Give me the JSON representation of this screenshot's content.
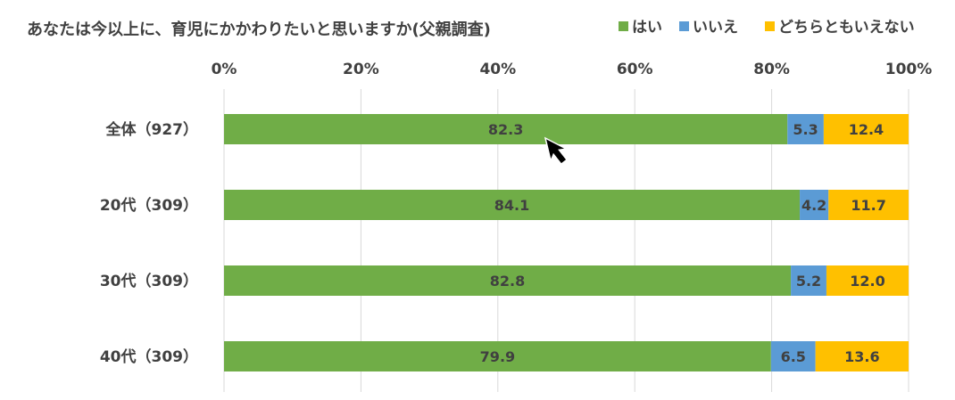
{
  "chart_data": {
    "type": "bar",
    "orientation": "horizontal",
    "stacked": true,
    "title": "あなたは今以上に、育児にかかわりたいと思いますか(父親調査)",
    "categories": [
      "全体（927）",
      "20代（309）",
      "30代（309）",
      "40代（309）"
    ],
    "series": [
      {
        "name": "はい",
        "color": "#70AD47",
        "values": [
          82.3,
          84.1,
          82.8,
          79.9
        ]
      },
      {
        "name": "いいえ",
        "color": "#5B9BD5",
        "values": [
          5.3,
          4.2,
          5.2,
          6.5
        ]
      },
      {
        "name": "どちらともいえない",
        "color": "#FFC000",
        "values": [
          12.4,
          11.7,
          12.0,
          13.6
        ]
      }
    ],
    "xlim": [
      0,
      100
    ],
    "x_ticks": [
      "0%",
      "20%",
      "40%",
      "60%",
      "80%",
      "100%"
    ],
    "legend_position": "top-right",
    "grid": "vertical"
  }
}
